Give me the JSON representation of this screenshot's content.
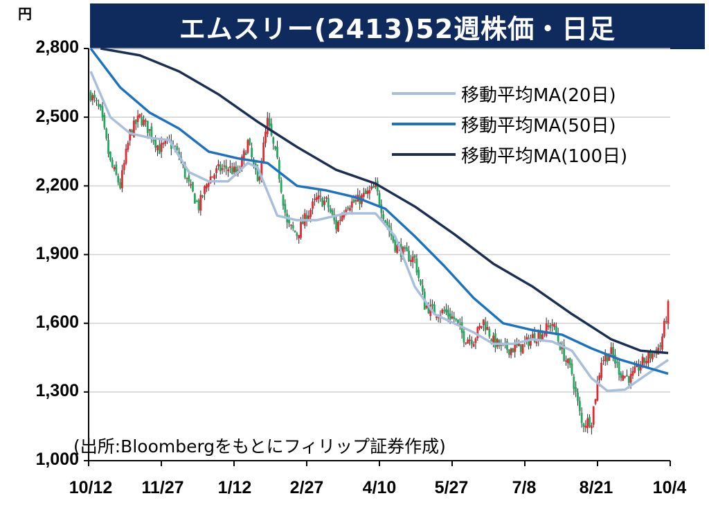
{
  "title": "エムスリー(2413)52週株価・日足",
  "unit": "円",
  "source": "(出所:Bloombergをもとにフィリップ証券作成)",
  "colors": {
    "title_bg": "#0f2a5c",
    "up": "#e8262d",
    "down": "#1eaa5c",
    "ma20": "#a7bfdc",
    "ma50": "#1a72c0",
    "ma100": "#1b2f55",
    "grid": "#d0d0d0"
  },
  "chart_data": {
    "type": "candlestick",
    "title": "エムスリー(2413)52週株価・日足",
    "ylabel": "円",
    "ylim": [
      1000,
      2800
    ],
    "yticks": [
      1000,
      1300,
      1600,
      1900,
      2200,
      2500,
      2800
    ],
    "ytick_labels": [
      "1,000",
      "1,300",
      "1,600",
      "1,900",
      "2,200",
      "2,500",
      "2,800"
    ],
    "xtick_labels": [
      "10/12",
      "11/27",
      "1/12",
      "2/27",
      "4/10",
      "5/27",
      "7/8",
      "8/21",
      "10/4"
    ],
    "grid": true,
    "legend_position": "top-right",
    "legend": [
      "移動平均MA(20日)",
      "移動平均MA(50日)",
      "移動平均MA(100日)"
    ],
    "close_approx": [
      [
        0,
        2600
      ],
      [
        5,
        2520
      ],
      [
        10,
        2300
      ],
      [
        15,
        2200
      ],
      [
        20,
        2430
      ],
      [
        25,
        2500
      ],
      [
        30,
        2440
      ],
      [
        35,
        2360
      ],
      [
        40,
        2390
      ],
      [
        45,
        2330
      ],
      [
        50,
        2200
      ],
      [
        55,
        2110
      ],
      [
        60,
        2230
      ],
      [
        65,
        2270
      ],
      [
        70,
        2280
      ],
      [
        75,
        2250
      ],
      [
        80,
        2390
      ],
      [
        85,
        2210
      ],
      [
        90,
        2480
      ],
      [
        95,
        2300
      ],
      [
        100,
        2030
      ],
      [
        105,
        1990
      ],
      [
        110,
        2070
      ],
      [
        115,
        2140
      ],
      [
        120,
        2130
      ],
      [
        125,
        2020
      ],
      [
        130,
        2120
      ],
      [
        135,
        2130
      ],
      [
        140,
        2160
      ],
      [
        145,
        2190
      ],
      [
        150,
        2050
      ],
      [
        155,
        1940
      ],
      [
        160,
        1900
      ],
      [
        165,
        1880
      ],
      [
        170,
        1680
      ],
      [
        175,
        1650
      ],
      [
        180,
        1650
      ],
      [
        185,
        1620
      ],
      [
        190,
        1540
      ],
      [
        195,
        1530
      ],
      [
        200,
        1610
      ],
      [
        205,
        1520
      ],
      [
        210,
        1490
      ],
      [
        215,
        1490
      ],
      [
        220,
        1500
      ],
      [
        225,
        1540
      ],
      [
        230,
        1560
      ],
      [
        235,
        1600
      ],
      [
        240,
        1480
      ],
      [
        245,
        1380
      ],
      [
        250,
        1160
      ],
      [
        255,
        1180
      ],
      [
        260,
        1440
      ],
      [
        265,
        1470
      ],
      [
        270,
        1380
      ],
      [
        275,
        1360
      ],
      [
        280,
        1420
      ],
      [
        285,
        1460
      ],
      [
        290,
        1500
      ],
      [
        294,
        1670
      ]
    ],
    "series": [
      {
        "name": "移動平均MA(20日)",
        "values": [
          [
            0,
            2700
          ],
          [
            10,
            2500
          ],
          [
            20,
            2430
          ],
          [
            30,
            2410
          ],
          [
            40,
            2400
          ],
          [
            50,
            2260
          ],
          [
            60,
            2220
          ],
          [
            70,
            2220
          ],
          [
            80,
            2300
          ],
          [
            85,
            2280
          ],
          [
            95,
            2070
          ],
          [
            105,
            2050
          ],
          [
            115,
            2050
          ],
          [
            130,
            2080
          ],
          [
            145,
            2080
          ],
          [
            155,
            1980
          ],
          [
            165,
            1760
          ],
          [
            175,
            1640
          ],
          [
            185,
            1600
          ],
          [
            195,
            1560
          ],
          [
            205,
            1510
          ],
          [
            215,
            1510
          ],
          [
            225,
            1530
          ],
          [
            235,
            1520
          ],
          [
            245,
            1480
          ],
          [
            255,
            1360
          ],
          [
            263,
            1305
          ],
          [
            272,
            1310
          ],
          [
            282,
            1370
          ],
          [
            294,
            1440
          ]
        ]
      },
      {
        "name": "移動平均MA(50日)",
        "values": [
          [
            0,
            2800
          ],
          [
            15,
            2630
          ],
          [
            30,
            2520
          ],
          [
            45,
            2450
          ],
          [
            60,
            2350
          ],
          [
            75,
            2320
          ],
          [
            90,
            2300
          ],
          [
            105,
            2200
          ],
          [
            120,
            2180
          ],
          [
            135,
            2150
          ],
          [
            150,
            2100
          ],
          [
            165,
            1980
          ],
          [
            180,
            1850
          ],
          [
            195,
            1710
          ],
          [
            210,
            1600
          ],
          [
            225,
            1570
          ],
          [
            240,
            1550
          ],
          [
            255,
            1490
          ],
          [
            270,
            1440
          ],
          [
            282,
            1410
          ],
          [
            294,
            1380
          ]
        ]
      },
      {
        "name": "移動平均MA(100日)",
        "values": [
          [
            5,
            2800
          ],
          [
            25,
            2770
          ],
          [
            45,
            2700
          ],
          [
            65,
            2600
          ],
          [
            85,
            2480
          ],
          [
            105,
            2370
          ],
          [
            125,
            2270
          ],
          [
            145,
            2210
          ],
          [
            165,
            2110
          ],
          [
            185,
            1990
          ],
          [
            205,
            1860
          ],
          [
            225,
            1760
          ],
          [
            245,
            1640
          ],
          [
            265,
            1530
          ],
          [
            280,
            1480
          ],
          [
            294,
            1470
          ]
        ]
      }
    ]
  }
}
